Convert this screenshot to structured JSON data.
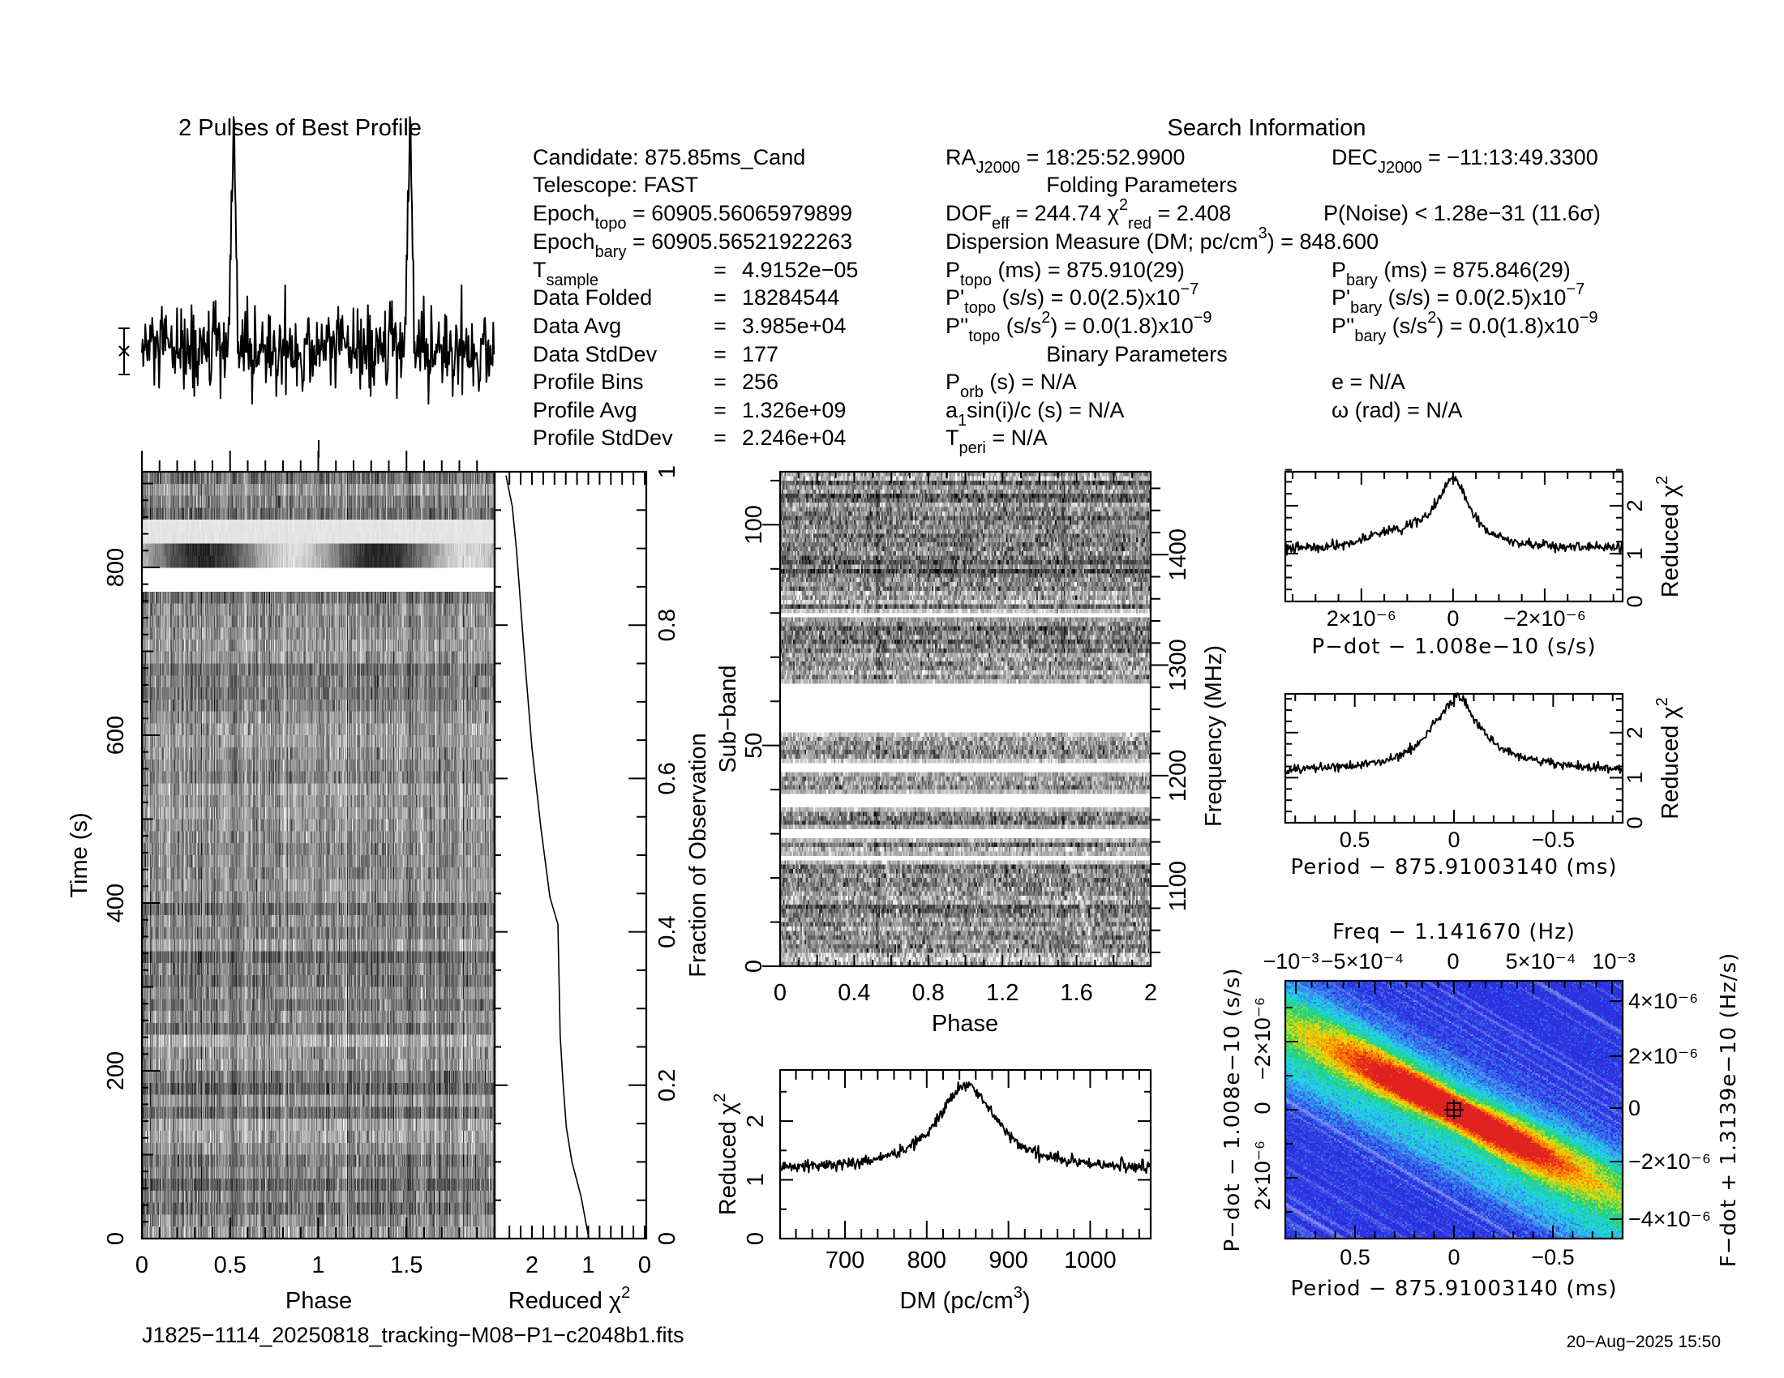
{
  "figure": {
    "profile_title": "2 Pulses of Best Profile",
    "search_title": "Search Information",
    "folding_title": "Folding Parameters",
    "binary_title": "Binary Parameters",
    "filename": "J1825−1114_20250818_tracking−M08−P1−c2048b1.fits",
    "date": "20−Aug−2025 15:50"
  },
  "info": [
    [
      "Candidate:  875.85ms_Cand"
    ],
    [
      "Telescope:  FAST"
    ],
    [
      "Epoch",
      {
        "sub": "topo"
      },
      " = 60905.56065979899"
    ],
    [
      "Epoch",
      {
        "sub": "bary"
      },
      " = 60905.56521922263"
    ],
    [
      "T",
      {
        "sub": "sample"
      }
    ],
    [
      "="
    ],
    [
      "4.9152e−05"
    ],
    [
      "Data Folded"
    ],
    [
      "="
    ],
    [
      "18284544"
    ],
    [
      "Data Avg"
    ],
    [
      "="
    ],
    [
      "3.985e+04"
    ],
    [
      "Data StdDev"
    ],
    [
      "="
    ],
    [
      "177"
    ],
    [
      "Profile Bins"
    ],
    [
      "="
    ],
    [
      "256"
    ],
    [
      "Profile Avg"
    ],
    [
      "="
    ],
    [
      "1.326e+09"
    ],
    [
      "Profile StdDev"
    ],
    [
      "="
    ],
    [
      "2.246e+04"
    ],
    [
      "RA",
      {
        "sub": "J2000"
      },
      " = 18:25:52.9900"
    ],
    [
      "DEC",
      {
        "sub": "J2000"
      },
      " = −11:13:49.3300"
    ],
    [
      "DOF",
      {
        "sub": "eff"
      },
      " = 244.74  χ",
      {
        "sup": "2"
      },
      {
        "sub": "red"
      },
      " = 2.408"
    ],
    [
      "P(Noise) < 1.28e−31   (11.6σ)"
    ],
    [
      "Dispersion Measure (DM; pc/cm",
      {
        "sup": "3"
      },
      ") = 848.600"
    ],
    [
      "P",
      {
        "sub": "topo"
      },
      " (ms) =  875.910(29)"
    ],
    [
      "P",
      {
        "sub": "bary"
      },
      " (ms) =  875.846(29)"
    ],
    [
      "P'",
      {
        "sub": "topo"
      },
      " (s/s) = 0.0(2.5)x10",
      {
        "sup": "−7"
      }
    ],
    [
      "P'",
      {
        "sub": "bary"
      },
      " (s/s) = 0.0(2.5)x10",
      {
        "sup": "−7"
      }
    ],
    [
      "P''",
      {
        "sub": "topo"
      },
      " (s/s",
      {
        "sup": "2"
      },
      ") = 0.0(1.8)x10",
      {
        "sup": "−9"
      }
    ],
    [
      "P''",
      {
        "sub": "bary"
      },
      " (s/s",
      {
        "sup": "2"
      },
      ") = 0.0(1.8)x10",
      {
        "sup": "−9"
      }
    ],
    [
      "P",
      {
        "sub": "orb"
      },
      " (s) = N/A"
    ],
    [
      "e = N/A"
    ],
    [
      "a",
      {
        "sub": "1"
      },
      "sin(i)/c (s) = N/A"
    ],
    [
      "ω (rad) = N/A"
    ],
    [
      "T",
      {
        "sub": "peri"
      },
      " = N/A"
    ]
  ],
  "chart_data": [
    {
      "id": "profile",
      "type": "line",
      "title": "2 Pulses of Best Profile",
      "x": "phase",
      "xlim": [
        0,
        2
      ],
      "bins": 256,
      "baseline": 0,
      "noise_sigma": 1,
      "peak_phase": 0.52,
      "peak_width": 0.012,
      "peak_amplitude_sigma": 8.4
    },
    {
      "id": "time_phase",
      "type": "heatmap",
      "xlabel": "Phase",
      "ylabel": "Time (s)",
      "xlim": [
        0,
        2
      ],
      "ylim": [
        0,
        914
      ],
      "xticks": [
        "0",
        "0.5",
        "1",
        "1.5"
      ],
      "yticks": [
        "0",
        "200",
        "400",
        "600",
        "800"
      ],
      "rows": 64,
      "bins": 256,
      "special_rows": [
        {
          "t0": 770,
          "t1": 795,
          "kind": "zapped"
        },
        {
          "t0": 798,
          "t1": 828,
          "kind": "smeared"
        },
        {
          "t0": 829,
          "t1": 855,
          "kind": "faint"
        }
      ]
    },
    {
      "id": "chi2_vs_time",
      "type": "line",
      "xlabel": "Reduced χ",
      "xlabel_sup": "2",
      "ylabel": "Fraction of Observation",
      "xlim": [
        2.6,
        0
      ],
      "ylim": [
        0,
        1
      ],
      "xticks": [
        "2",
        "1",
        "0"
      ],
      "yticks": [
        "0",
        "0.2",
        "0.4",
        "0.6",
        "0.8",
        "1"
      ],
      "fraction": [
        0,
        0.055,
        0.1,
        0.145,
        0.205,
        0.265,
        0.41,
        0.445,
        0.535,
        0.64,
        0.775,
        0.895,
        0.955,
        0.995
      ],
      "chi2": [
        0.99,
        1.13,
        1.29,
        1.39,
        1.45,
        1.5,
        1.54,
        1.68,
        1.84,
        2.0,
        2.15,
        2.27,
        2.35,
        2.46
      ]
    },
    {
      "id": "subbands",
      "type": "heatmap",
      "xlabel": "Phase",
      "ylabel": "Sub−band",
      "ylabel2": "Frequency (MHz)",
      "xlim": [
        0,
        2
      ],
      "ylim": [
        0,
        112
      ],
      "freq_lim": [
        1027.5,
        1475
      ],
      "xticks": [
        "0",
        "0.4",
        "0.8",
        "1.2",
        "1.6",
        "2"
      ],
      "yticks": [
        "0",
        "50",
        "100"
      ],
      "freq_ticks": [
        "1100",
        "1200",
        "1300",
        "1400"
      ],
      "subbands": 112,
      "bins": 128,
      "zapped": [
        [
          24,
          24
        ],
        [
          29,
          30
        ],
        [
          36,
          38
        ],
        [
          44,
          45
        ],
        [
          53,
          63
        ],
        [
          79,
          79
        ]
      ]
    },
    {
      "id": "dm_curve",
      "type": "line",
      "xlabel": "DM (pc/cm",
      "xlabel_sup": "3",
      "xlabel_end": ")",
      "ylabel": "Reduced χ",
      "ylabel_sup": "2",
      "xlim": [
        620.6,
        1074
      ],
      "ylim": [
        0,
        2.87
      ],
      "xticks": [
        "700",
        "800",
        "900",
        "1000"
      ],
      "yticks": [
        "0",
        "1",
        "2"
      ],
      "baseline": 1.15,
      "peak_dm": 848.6,
      "peak_chi2": 2.6,
      "width": 45
    },
    {
      "id": "pdot_curve",
      "type": "line",
      "xlabel": "P−dot − 1.008e−10 (s/s)",
      "ylabel": "Reduced χ",
      "ylabel_sup": "2",
      "xlim": [
        3.66e-06,
        -3.7e-06
      ],
      "ylim": [
        0,
        2.71
      ],
      "xticks": [
        "2×10⁻⁶",
        "0",
        "−2×10⁻⁶"
      ],
      "yticks": [
        "0",
        "1",
        "2"
      ],
      "baseline": 1.1,
      "peak": 2.55,
      "width": 4.5e-07
    },
    {
      "id": "period_curve",
      "type": "line",
      "xlabel": "Period − 875.91003140 (ms)",
      "ylabel": "Reduced χ",
      "ylabel_sup": "2",
      "xlim": [
        0.85,
        -0.85
      ],
      "ylim": [
        0,
        2.86
      ],
      "xticks": [
        "0.5",
        "0",
        "−0.5"
      ],
      "yticks": [
        "0",
        "1",
        "2"
      ],
      "baseline": 1.1,
      "peak": 2.6,
      "width": 0.15
    },
    {
      "id": "p_pdot_plane",
      "type": "heatmap",
      "title": "Freq − 1.141670 (Hz)",
      "xlabel": "Period − 875.91003140 (ms)",
      "ylabel": "P−dot − 1.008e−10 (s/s)",
      "ylabel2": "F−dot + 1.3139e−10 (Hz/s)",
      "xticks": [
        "0.5",
        "0",
        "−0.5"
      ],
      "top_ticks": [
        "−10⁻³",
        "−5×10⁻⁴",
        "0",
        "5×10⁻⁴",
        "10⁻³"
      ],
      "yticks": [
        "−2×10⁻⁶",
        "0",
        "2×10⁻⁶"
      ],
      "right_ticks": [
        "4×10⁻⁶",
        "2×10⁻⁶",
        "0",
        "−2×10⁻⁶",
        "−4×10⁻⁶"
      ],
      "best": [
        0,
        0
      ],
      "colormap": [
        "#2b2fe0",
        "#3a7cf0",
        "#1fd8e8",
        "#1fd070",
        "#f0e000",
        "#ff8000",
        "#e02020"
      ],
      "streak_color": "#b0a8f0"
    }
  ]
}
